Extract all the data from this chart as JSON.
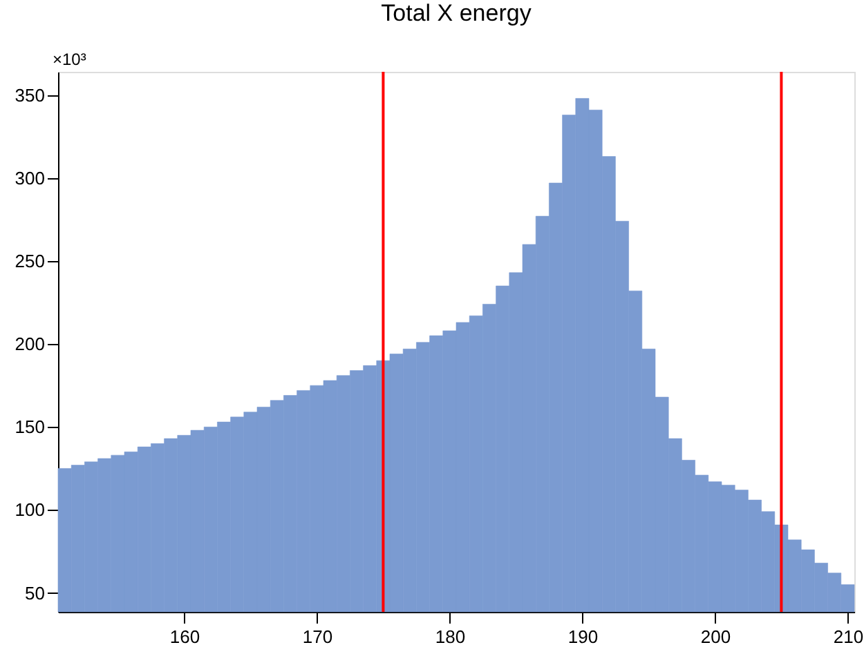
{
  "chart_data": {
    "type": "histogram",
    "title": "Total X energy",
    "bins": [
      150.5,
      151.5,
      152.5,
      153.5,
      154.5,
      155.5,
      156.5,
      157.5,
      158.5,
      159.5,
      160.5,
      161.5,
      162.5,
      163.5,
      164.5,
      165.5,
      166.5,
      167.5,
      168.5,
      169.5,
      170.5,
      171.5,
      172.5,
      173.5,
      174.5,
      175.5,
      176.5,
      177.5,
      178.5,
      179.5,
      180.5,
      181.5,
      182.5,
      183.5,
      184.5,
      185.5,
      186.5,
      187.5,
      188.5,
      189.5,
      190.5,
      191.5,
      192.5,
      193.5,
      194.5,
      195.5,
      196.5,
      197.5,
      198.5,
      199.5,
      200.5,
      201.5,
      202.5,
      203.5,
      204.5,
      205.5,
      206.5,
      207.5,
      208.5,
      209.5,
      210.5
    ],
    "values": [
      125,
      127,
      129,
      131,
      133,
      135,
      138,
      140,
      143,
      145,
      148,
      150,
      153,
      156,
      159,
      162,
      166,
      169,
      172,
      175,
      178,
      181,
      184,
      187,
      190,
      194,
      197,
      201,
      205,
      208,
      213,
      217,
      224,
      235,
      243,
      260,
      277,
      297,
      338,
      348,
      341,
      313,
      274,
      232,
      197,
      168,
      143,
      130,
      121,
      117,
      115,
      112,
      106,
      99,
      91,
      82,
      76,
      68,
      62,
      55
    ],
    "color": "#7b9bd1",
    "xlim": [
      150.5,
      210.5
    ],
    "xticks": [
      160,
      170,
      180,
      190,
      200,
      210
    ],
    "ylim": [
      38.6,
      364
    ],
    "yticks": [
      50,
      100,
      150,
      200,
      250,
      300,
      350
    ],
    "ref_lines": [
      {
        "axis": "x",
        "value": 175,
        "color": "#ff0000"
      },
      {
        "axis": "x",
        "value": 205,
        "color": "#ff0000"
      }
    ],
    "annotations": [
      "×10³"
    ],
    "grid": false
  }
}
